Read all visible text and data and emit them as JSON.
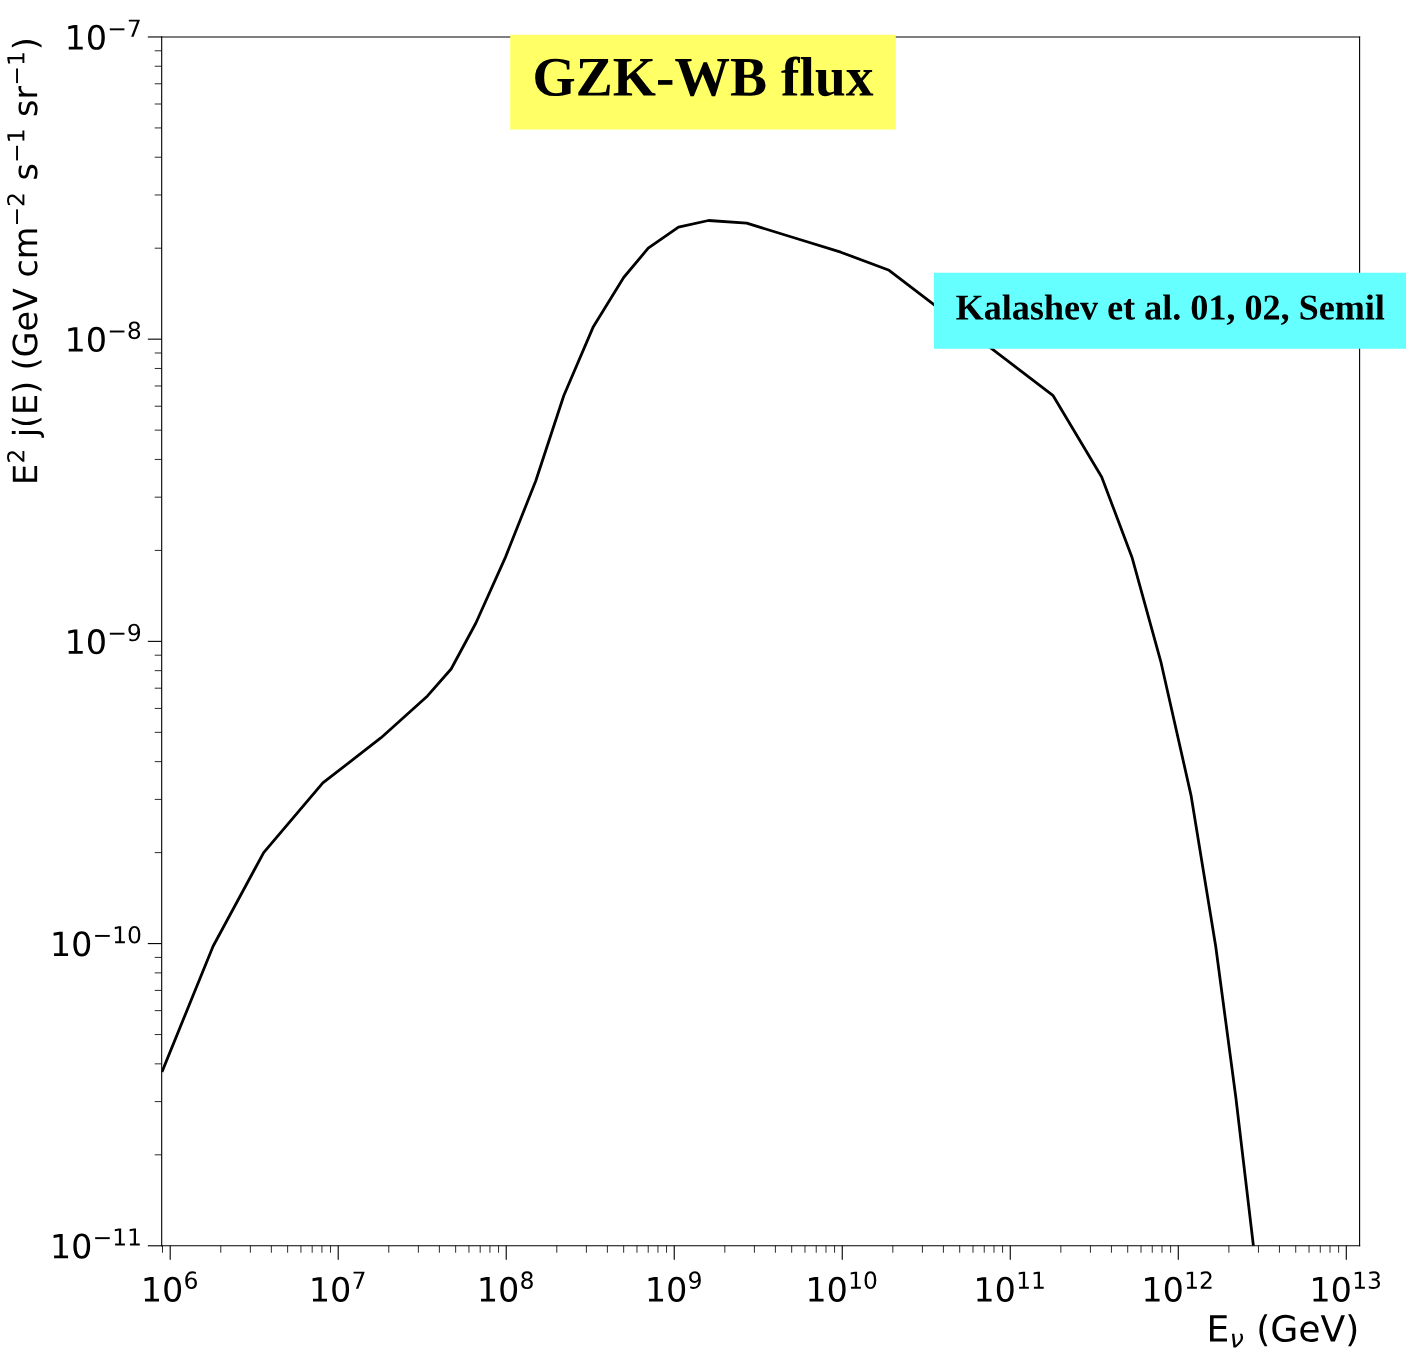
{
  "chart_data": {
    "type": "line",
    "title": "GZK-WB flux",
    "xlabel": "E$_{ν}$ (GeV)",
    "ylabel": "E$^{2}$ j(E) (GeV cm$^{−2}$ s$^{−1}$ sr$^{−1}$)",
    "annotations": [
      "Kalashev et al. 01, 02, Semil"
    ],
    "log": "xy",
    "xlim": [
      890000.0,
      12000000000000.0
    ],
    "ylim": [
      1e-11,
      1e-07
    ],
    "xticks": [
      {
        "value": 1000000.0,
        "label": "10$^{6}$"
      },
      {
        "value": 10000000.0,
        "label": "10$^{7}$"
      },
      {
        "value": 100000000.0,
        "label": "10$^{8}$"
      },
      {
        "value": 1000000000.0,
        "label": "10$^{9}$"
      },
      {
        "value": 10000000000.0,
        "label": "10$^{10}$"
      },
      {
        "value": 100000000000.0,
        "label": "10$^{11}$"
      },
      {
        "value": 1000000000000.0,
        "label": "10$^{12}$"
      },
      {
        "value": 10000000000000.0,
        "label": "10$^{13}$"
      }
    ],
    "yticks": [
      {
        "value": 1e-11,
        "label": "10$^{−11}$"
      },
      {
        "value": 1e-10,
        "label": "10$^{−10}$"
      },
      {
        "value": 1e-09,
        "label": "10$^{−9}$"
      },
      {
        "value": 1e-08,
        "label": "10$^{−8}$"
      },
      {
        "value": 1e-07,
        "label": "10$^{−7}$"
      }
    ],
    "series": [
      {
        "color": "#000000",
        "x": [
          900000.0,
          1800000.0,
          3600000.0,
          8100000.0,
          18000000.0,
          34000000.0,
          47000000.0,
          66000000.0,
          99000000.0,
          150000000.0,
          220000000.0,
          330000000.0,
          500000000.0,
          700000000.0,
          1060000000.0,
          1600000000.0,
          2700000000.0,
          5400000000.0,
          9800000000.0,
          19000000000.0,
          180000000000.0,
          350000000000.0,
          530000000000.0,
          790000000000.0,
          1190000000000.0,
          1670000000000.0,
          2200000000000.0,
          2800000000000.0
        ],
        "values": [
          3.8e-11,
          9.8e-11,
          2e-10,
          3.4e-10,
          4.8e-10,
          6.6e-10,
          8.1e-10,
          1.15e-09,
          1.9e-09,
          3.4e-09,
          6.5e-09,
          1.1e-08,
          1.6e-08,
          2e-08,
          2.35e-08,
          2.47e-08,
          2.42e-08,
          2.15e-08,
          1.94e-08,
          1.69e-08,
          6.5e-09,
          3.5e-09,
          1.9e-09,
          8.5e-10,
          3.1e-10,
          9.8e-11,
          3.1e-11,
          1e-11
        ]
      }
    ]
  }
}
